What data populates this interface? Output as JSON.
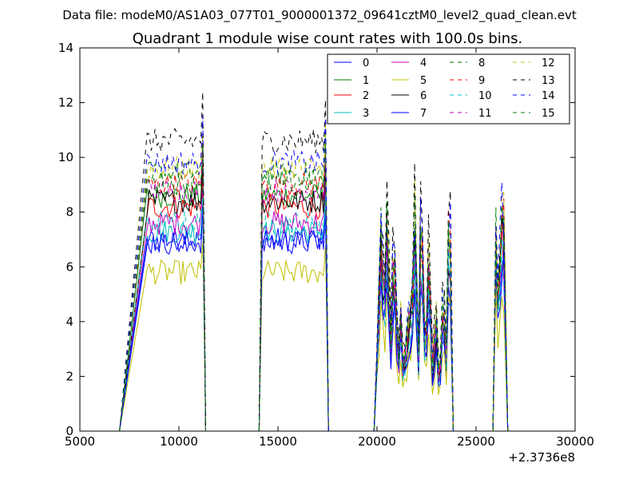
{
  "figure": {
    "suptitle": "Data file: modeM0/AS1A03_077T01_9000001372_09641cztM0_level2_quad_clean.evt"
  },
  "chart_data": {
    "type": "line",
    "title": "Quadrant 1 module wise count rates with 100.0s bins.",
    "xlabel": "",
    "ylabel": "",
    "xlim": [
      5000,
      30000
    ],
    "ylim": [
      0,
      14
    ],
    "x_offset_label": "+2.3736e8",
    "x_ticks": [
      5000,
      10000,
      15000,
      20000,
      25000,
      30000
    ],
    "y_ticks": [
      0,
      2,
      4,
      6,
      8,
      10,
      12,
      14
    ],
    "grid": false,
    "legend_placement": "top-right",
    "legend_columns": 4,
    "series_base_levels": [
      7.0,
      8.6,
      8.2,
      7.3,
      7.6,
      5.8,
      8.4,
      6.9,
      9.4,
      9.0,
      7.6,
      8.8,
      9.6,
      10.6,
      9.8,
      9.1
    ],
    "segments": [
      {
        "x_start": 8400,
        "x_end": 11200,
        "level": 1.0,
        "spike_x": 11200
      },
      {
        "x_start": 14200,
        "x_end": 17400,
        "level": 1.0,
        "spike_x": 17400
      },
      {
        "x_start": 20000,
        "x_end": 23700,
        "level": 0.38,
        "spike_x": 23600
      },
      {
        "x_start": 26000,
        "x_end": 26450,
        "level": 0.7,
        "spike_x": 26300
      }
    ],
    "series": [
      {
        "name": "0",
        "color": "#0000ff",
        "dash": "solid"
      },
      {
        "name": "1",
        "color": "#008000",
        "dash": "solid"
      },
      {
        "name": "2",
        "color": "#ff0000",
        "dash": "solid"
      },
      {
        "name": "3",
        "color": "#00bfbf",
        "dash": "solid"
      },
      {
        "name": "4",
        "color": "#bf00bf",
        "dash": "solid"
      },
      {
        "name": "5",
        "color": "#bfbf00",
        "dash": "solid"
      },
      {
        "name": "6",
        "color": "#000000",
        "dash": "solid"
      },
      {
        "name": "7",
        "color": "#0000ff",
        "dash": "solid"
      },
      {
        "name": "8",
        "color": "#008000",
        "dash": "dashed"
      },
      {
        "name": "9",
        "color": "#ff0000",
        "dash": "dashed"
      },
      {
        "name": "10",
        "color": "#00bfbf",
        "dash": "dashed"
      },
      {
        "name": "11",
        "color": "#bf00bf",
        "dash": "dashed"
      },
      {
        "name": "12",
        "color": "#bfbf00",
        "dash": "dashed"
      },
      {
        "name": "13",
        "color": "#000000",
        "dash": "dashed"
      },
      {
        "name": "14",
        "color": "#0000ff",
        "dash": "dashed"
      },
      {
        "name": "15",
        "color": "#008000",
        "dash": "dashed"
      }
    ]
  }
}
